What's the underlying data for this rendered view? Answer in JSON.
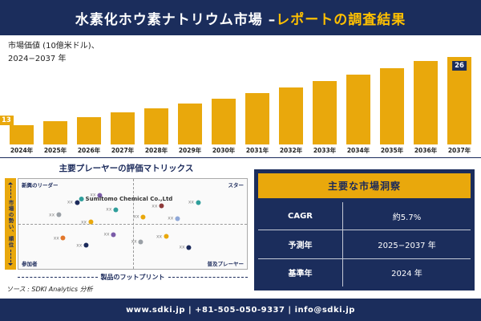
{
  "header": {
    "title_main": "水素化ホウ素ナトリウム市場 –",
    "title_accent": "レポートの調査結果"
  },
  "chart_data": [
    {
      "type": "bar",
      "title": "市場価値 (10億米ドル)、2024−2037 年",
      "title_line1": "市場価値 (10億米ドル)、",
      "title_line2": "2024−2037 年",
      "categories": [
        "2024年",
        "2025年",
        "2026年",
        "2027年",
        "2028年",
        "2029年",
        "2030年",
        "2031年",
        "2032年",
        "2033年",
        "2034年",
        "2035年",
        "2036年",
        "2037年"
      ],
      "values": [
        13,
        13.7,
        14.5,
        15.4,
        16.2,
        17.2,
        18.1,
        19.2,
        20.3,
        21.4,
        22.7,
        23.9,
        25.3,
        26
      ],
      "first_label": "13",
      "last_label": "26",
      "bar_color": "#E9A80C",
      "ylim": [
        10,
        27
      ],
      "grid": false,
      "legend": "none"
    },
    {
      "type": "scatter",
      "title": "主要プレーヤーの評価マトリックス",
      "quadrants": {
        "top_left": "新興のリーダー",
        "top_right": "スター",
        "bottom_left": "参加者",
        "bottom_right": "普及プレーヤー"
      },
      "x_axis": "製品のフットプリント",
      "y_axis": "市場の勢い、順位",
      "point_label": "xx",
      "highlight_label": "Sumitomo Chemical Co.,Ltd",
      "points": [
        {
          "x": 16,
          "y": 40,
          "color": "#9AA0A6",
          "label": "xx"
        },
        {
          "x": 24,
          "y": 26,
          "color": "#1B2A5B",
          "label": "xx"
        },
        {
          "x": 30,
          "y": 48,
          "color": "#E9A80C",
          "label": "xx"
        },
        {
          "x": 34,
          "y": 18,
          "color": "#7A5BA8",
          "label": "xx"
        },
        {
          "x": 41,
          "y": 34,
          "color": "#2F9E9B",
          "label": "xx"
        },
        {
          "x": 47,
          "y": 22,
          "color": "#2F9E9B",
          "label": "xx",
          "name": "Sumitomo Chemical Co.,Ltd"
        },
        {
          "x": 53,
          "y": 42,
          "color": "#E9A80C",
          "label": "xx"
        },
        {
          "x": 61,
          "y": 30,
          "color": "#8E3B3B",
          "label": "xx"
        },
        {
          "x": 68,
          "y": 44,
          "color": "#8FA8D8",
          "label": "xx"
        },
        {
          "x": 77,
          "y": 26,
          "color": "#2F9E9B",
          "label": "xx"
        },
        {
          "x": 18,
          "y": 66,
          "color": "#E2772B",
          "label": "xx"
        },
        {
          "x": 28,
          "y": 74,
          "color": "#1B2A5B",
          "label": "xx"
        },
        {
          "x": 40,
          "y": 62,
          "color": "#7A5BA8",
          "label": "xx"
        },
        {
          "x": 52,
          "y": 70,
          "color": "#9AA0A6",
          "label": "xx"
        },
        {
          "x": 63,
          "y": 64,
          "color": "#E9A80C",
          "label": "xx"
        },
        {
          "x": 73,
          "y": 76,
          "color": "#1B2A5B",
          "label": "xx"
        }
      ],
      "source": "ソース : SDKI Analytics 分析"
    }
  ],
  "insights": {
    "title": "主要な市場洞察",
    "rows": [
      {
        "label": "CAGR",
        "value": "約5.7%"
      },
      {
        "label": "予測年",
        "value": "2025−2037 年"
      },
      {
        "label": "基準年",
        "value": "2024 年"
      }
    ]
  },
  "footer": {
    "text": "www.sdki.jp | +81-505-050-9337 | info@sdki.jp"
  },
  "colors": {
    "navy": "#1B2D5C",
    "gold": "#E9A80C",
    "accent_text": "#FFC000"
  }
}
